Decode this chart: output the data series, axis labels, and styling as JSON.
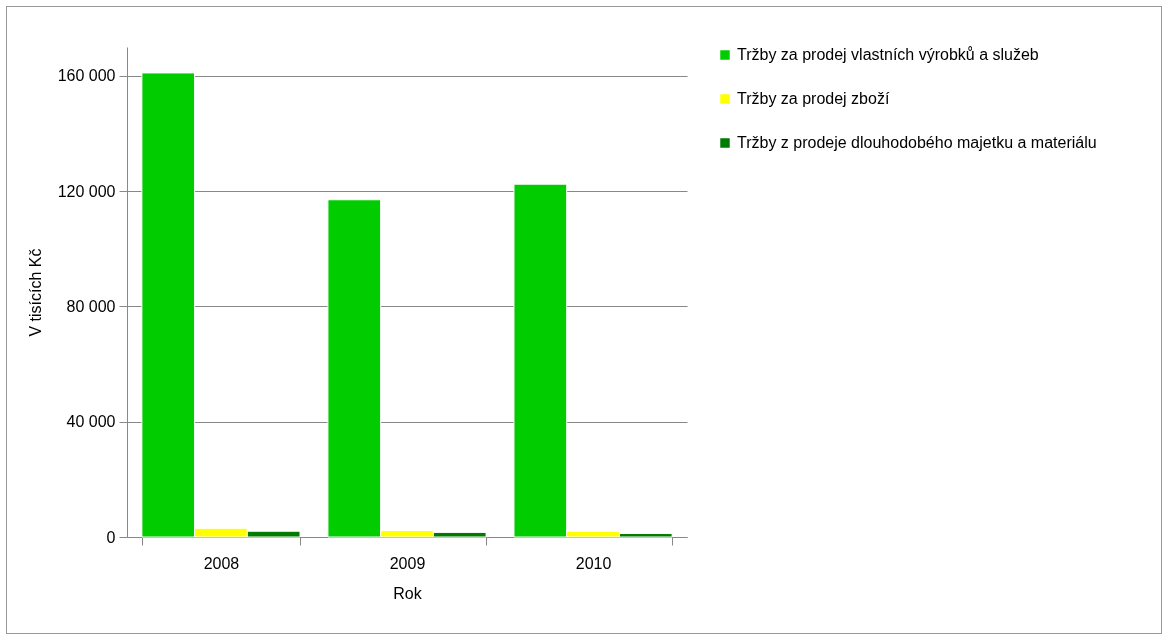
{
  "chart_data": {
    "type": "bar",
    "xlabel": "Rok",
    "ylabel": "V tisících  Kč",
    "categories": [
      "2008",
      "2009",
      "2010"
    ],
    "series": [
      {
        "name": "Tržby za prodej vlastních výrobků a služeb",
        "color": "#00cc00",
        "values": [
          161000,
          117000,
          122400
        ]
      },
      {
        "name": "Tržby za prodej zboží",
        "color": "#ffff00",
        "values": [
          3000,
          2200,
          2000
        ]
      },
      {
        "name": "Tržby z prodeje dlouhodobého majetku a materiálu",
        "color": "#007a00",
        "values": [
          2000,
          1600,
          1200
        ]
      }
    ],
    "ylim": [
      0,
      170000
    ],
    "yticks": [
      {
        "value": 0,
        "label": "0"
      },
      {
        "value": 40000,
        "label": "40 000"
      },
      {
        "value": 80000,
        "label": "80 000"
      },
      {
        "value": 120000,
        "label": "120 000"
      },
      {
        "value": 160000,
        "label": "160 000"
      }
    ],
    "grid": "y",
    "legend": "right"
  }
}
